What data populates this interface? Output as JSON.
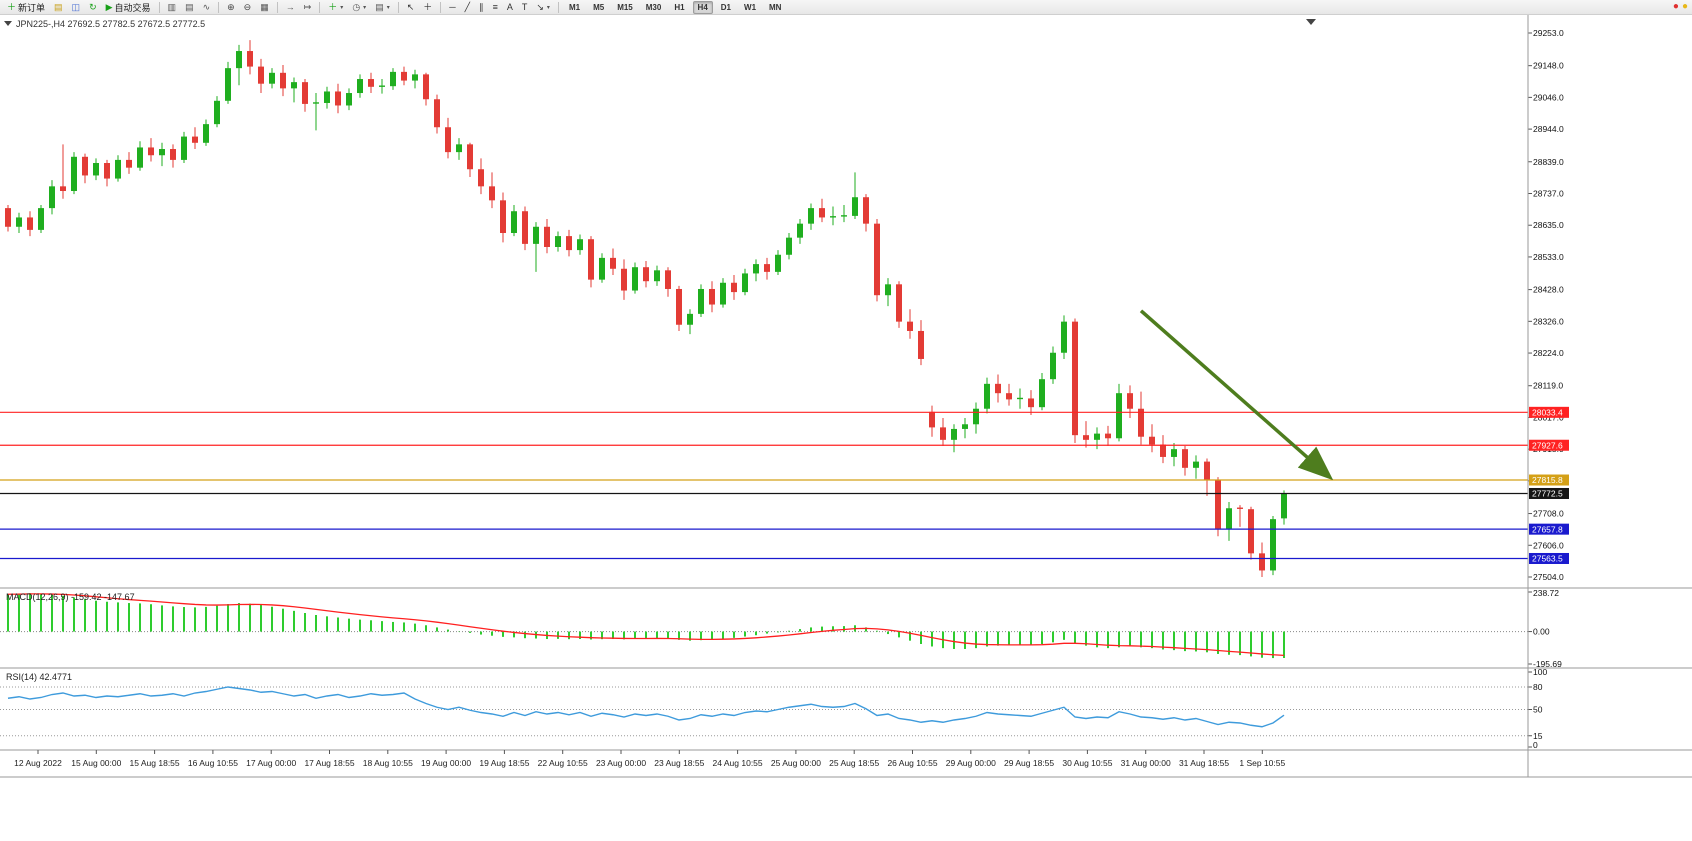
{
  "colors": {
    "bull": "#1fae1f",
    "bear": "#e33b35",
    "macd_hist": "#2ecc2e",
    "macd_signal": "#ff2020",
    "rsi_line": "#3e9bdc",
    "accent_red": "#ff2222",
    "accent_orange": "#d4a017",
    "accent_blue": "#1a1ace",
    "accent_black": "#151515",
    "arrow_green": "#4e7d1e"
  },
  "toolbar": {
    "dropdown_glyph": "▾",
    "groups": [
      {
        "items": [
          {
            "name": "new-order",
            "glyph": "＋",
            "color": "#18a018",
            "label": "新订单"
          },
          {
            "name": "new-chart",
            "glyph": "▤",
            "color": "#c8a018"
          },
          {
            "name": "profiles",
            "glyph": "◫",
            "color": "#4a6fd4"
          },
          {
            "name": "refresh",
            "glyph": "↻",
            "color": "#18a018"
          },
          {
            "name": "autotrading",
            "glyph": "▶",
            "color": "#18a018",
            "label": "自动交易"
          }
        ]
      },
      {
        "items": [
          {
            "name": "bar-chart",
            "glyph": "▥",
            "color": "#555555"
          },
          {
            "name": "candlestick-chart",
            "glyph": "▤",
            "color": "#555555"
          },
          {
            "name": "line-chart",
            "glyph": "∿",
            "color": "#555555"
          }
        ]
      },
      {
        "items": [
          {
            "name": "zoom-in",
            "glyph": "⊕",
            "color": "#444444"
          },
          {
            "name": "zoom-out",
            "glyph": "⊖",
            "color": "#444444"
          },
          {
            "name": "tile-windows",
            "glyph": "▦",
            "color": "#555555"
          }
        ]
      },
      {
        "items": [
          {
            "name": "auto-scroll",
            "glyph": "→",
            "color": "#555555"
          },
          {
            "name": "chart-shift",
            "glyph": "↦",
            "color": "#555555"
          }
        ]
      },
      {
        "items": [
          {
            "name": "indicators",
            "glyph": "＋",
            "color": "#18a018",
            "dropdown": true
          },
          {
            "name": "periods",
            "glyph": "◷",
            "color": "#555555",
            "dropdown": true
          },
          {
            "name": "templates",
            "glyph": "▤",
            "color": "#555555",
            "dropdown": true
          }
        ]
      },
      {
        "items": [
          {
            "name": "cursor",
            "glyph": "↖",
            "color": "#333333"
          },
          {
            "name": "crosshair",
            "glyph": "＋",
            "color": "#333333"
          }
        ]
      },
      {
        "items": [
          {
            "name": "horizontal-line",
            "glyph": "─",
            "color": "#333333"
          },
          {
            "name": "trendline",
            "glyph": "╱",
            "color": "#333333"
          },
          {
            "name": "equidistant-channel",
            "glyph": "∥",
            "color": "#333333"
          },
          {
            "name": "fibonacci",
            "glyph": "≡",
            "color": "#333333"
          },
          {
            "name": "text",
            "glyph": "A",
            "color": "#333333"
          },
          {
            "name": "text-label",
            "glyph": "T",
            "color": "#333333"
          },
          {
            "name": "arrows",
            "glyph": "↘",
            "color": "#333333",
            "dropdown": true
          }
        ]
      }
    ],
    "timeframes": {
      "options": [
        "M1",
        "M5",
        "M15",
        "M30",
        "H1",
        "H4",
        "D1",
        "W1",
        "MN"
      ],
      "active": "H4"
    },
    "right_icons": [
      {
        "name": "red-status",
        "glyph": "●",
        "color": "#e03030"
      },
      {
        "name": "yellow-status",
        "glyph": "●",
        "color": "#e8b818"
      }
    ]
  },
  "chart_data": {
    "type": "candlestick",
    "symbol": "JPN225-",
    "period": "H4",
    "header": {
      "symbol_period": "JPN225-,H4",
      "open": "27692.5",
      "high": "27782.5",
      "low": "27672.5",
      "close": "27772.5"
    },
    "price_axis": {
      "ticks": [
        29253.0,
        29148.0,
        29046.0,
        28944.0,
        28839.0,
        28737.0,
        28635.0,
        28533.0,
        28428.0,
        28326.0,
        28224.0,
        28119.0,
        28017.0,
        27915.0,
        27813.0,
        27708.0,
        27606.0,
        27504.0
      ]
    },
    "time_axis": {
      "labels": [
        "12 Aug 2022",
        "15 Aug 00:00",
        "15 Aug 18:55",
        "16 Aug 10:55",
        "17 Aug 00:00",
        "17 Aug 18:55",
        "18 Aug 10:55",
        "19 Aug 00:00",
        "19 Aug 18:55",
        "22 Aug 10:55",
        "23 Aug 00:00",
        "23 Aug 18:55",
        "24 Aug 10:55",
        "25 Aug 00:00",
        "25 Aug 18:55",
        "26 Aug 10:55",
        "29 Aug 00:00",
        "29 Aug 18:55",
        "30 Aug 10:55",
        "31 Aug 00:00",
        "31 Aug 18:55",
        "1 Sep 10:55"
      ]
    },
    "hlines": [
      {
        "price": 28033.4,
        "color": "#ff2222"
      },
      {
        "price": 27927.6,
        "color": "#ff2222"
      },
      {
        "price": 27815.8,
        "color": "#d4a017"
      },
      {
        "price": 27772.5,
        "color": "#151515"
      },
      {
        "price": 27657.8,
        "color": "#1a1ace"
      },
      {
        "price": 27563.5,
        "color": "#1a1ace"
      }
    ],
    "candles": [
      [
        28690,
        28700,
        28615,
        28630
      ],
      [
        28630,
        28675,
        28610,
        28660
      ],
      [
        28660,
        28680,
        28600,
        28620
      ],
      [
        28620,
        28700,
        28610,
        28690
      ],
      [
        28690,
        28780,
        28670,
        28760
      ],
      [
        28760,
        28895,
        28720,
        28745
      ],
      [
        28745,
        28870,
        28735,
        28855
      ],
      [
        28855,
        28865,
        28770,
        28795
      ],
      [
        28795,
        28850,
        28780,
        28835
      ],
      [
        28835,
        28845,
        28760,
        28785
      ],
      [
        28785,
        28860,
        28775,
        28845
      ],
      [
        28845,
        28870,
        28800,
        28820
      ],
      [
        28820,
        28905,
        28810,
        28885
      ],
      [
        28885,
        28915,
        28840,
        28860
      ],
      [
        28860,
        28900,
        28825,
        28880
      ],
      [
        28880,
        28895,
        28820,
        28845
      ],
      [
        28845,
        28935,
        28835,
        28920
      ],
      [
        28920,
        28950,
        28880,
        28900
      ],
      [
        28900,
        28975,
        28890,
        28960
      ],
      [
        28960,
        29050,
        28950,
        29035
      ],
      [
        29035,
        29160,
        29025,
        29140
      ],
      [
        29140,
        29215,
        29085,
        29195
      ],
      [
        29195,
        29230,
        29120,
        29145
      ],
      [
        29145,
        29170,
        29060,
        29090
      ],
      [
        29090,
        29140,
        29075,
        29125
      ],
      [
        29125,
        29150,
        29050,
        29075
      ],
      [
        29075,
        29110,
        29030,
        29095
      ],
      [
        29095,
        29105,
        29000,
        29025
      ],
      [
        29025,
        29060,
        28940,
        29028
      ],
      [
        29028,
        29080,
        29010,
        29065
      ],
      [
        29065,
        29090,
        28995,
        29020
      ],
      [
        29020,
        29075,
        29005,
        29060
      ],
      [
        29060,
        29120,
        29045,
        29105
      ],
      [
        29105,
        29125,
        29060,
        29080
      ],
      [
        29080,
        29105,
        29058,
        29082
      ],
      [
        29082,
        29140,
        29070,
        29128
      ],
      [
        29128,
        29145,
        29085,
        29100
      ],
      [
        29100,
        29135,
        29075,
        29120
      ],
      [
        29120,
        29125,
        29020,
        29040
      ],
      [
        29040,
        29055,
        28930,
        28950
      ],
      [
        28950,
        28980,
        28850,
        28870
      ],
      [
        28870,
        28915,
        28845,
        28895
      ],
      [
        28895,
        28900,
        28790,
        28815
      ],
      [
        28815,
        28850,
        28735,
        28760
      ],
      [
        28760,
        28805,
        28690,
        28715
      ],
      [
        28715,
        28740,
        28580,
        28610
      ],
      [
        28610,
        28700,
        28600,
        28680
      ],
      [
        28680,
        28695,
        28555,
        28575
      ],
      [
        28575,
        28645,
        28485,
        28630
      ],
      [
        28630,
        28655,
        28545,
        28565
      ],
      [
        28565,
        28615,
        28550,
        28600
      ],
      [
        28600,
        28620,
        28535,
        28555
      ],
      [
        28555,
        28605,
        28540,
        28590
      ],
      [
        28590,
        28600,
        28435,
        28460
      ],
      [
        28460,
        28545,
        28450,
        28530
      ],
      [
        28530,
        28560,
        28475,
        28495
      ],
      [
        28495,
        28525,
        28395,
        28425
      ],
      [
        28425,
        28515,
        28415,
        28500
      ],
      [
        28500,
        28520,
        28435,
        28455
      ],
      [
        28455,
        28505,
        28440,
        28490
      ],
      [
        28490,
        28500,
        28405,
        28430
      ],
      [
        28430,
        28440,
        28295,
        28315
      ],
      [
        28315,
        28365,
        28285,
        28350
      ],
      [
        28350,
        28445,
        28340,
        28430
      ],
      [
        28430,
        28455,
        28355,
        28380
      ],
      [
        28380,
        28465,
        28370,
        28450
      ],
      [
        28450,
        28475,
        28395,
        28420
      ],
      [
        28420,
        28495,
        28410,
        28480
      ],
      [
        28480,
        28525,
        28455,
        28510
      ],
      [
        28510,
        28530,
        28460,
        28485
      ],
      [
        28485,
        28555,
        28475,
        28540
      ],
      [
        28540,
        28610,
        28525,
        28595
      ],
      [
        28595,
        28655,
        28575,
        28640
      ],
      [
        28640,
        28705,
        28620,
        28690
      ],
      [
        28690,
        28720,
        28645,
        28660
      ],
      [
        28660,
        28695,
        28635,
        28662
      ],
      [
        28662,
        28700,
        28645,
        28665
      ],
      [
        28665,
        28805,
        28655,
        28725
      ],
      [
        28725,
        28735,
        28615,
        28640
      ],
      [
        28640,
        28655,
        28390,
        28410
      ],
      [
        28410,
        28465,
        28375,
        28445
      ],
      [
        28445,
        28455,
        28305,
        28325
      ],
      [
        28325,
        28365,
        28270,
        28295
      ],
      [
        28295,
        28330,
        28185,
        28205
      ],
      [
        28035,
        28055,
        27955,
        27985
      ],
      [
        27985,
        28015,
        27925,
        27945
      ],
      [
        27945,
        27995,
        27905,
        27980
      ],
      [
        27980,
        28015,
        27950,
        27995
      ],
      [
        27995,
        28065,
        27965,
        28045
      ],
      [
        28045,
        28145,
        28030,
        28125
      ],
      [
        28125,
        28155,
        28065,
        28095
      ],
      [
        28095,
        28125,
        28055,
        28075
      ],
      [
        28075,
        28110,
        28045,
        28078
      ],
      [
        28078,
        28105,
        28025,
        28050
      ],
      [
        28050,
        28160,
        28040,
        28140
      ],
      [
        28140,
        28245,
        28125,
        28225
      ],
      [
        28225,
        28345,
        28205,
        28325
      ],
      [
        28325,
        28335,
        27935,
        27960
      ],
      [
        27960,
        28005,
        27920,
        27945
      ],
      [
        27945,
        27985,
        27915,
        27965
      ],
      [
        27965,
        27990,
        27925,
        27950
      ],
      [
        27950,
        28125,
        27940,
        28095
      ],
      [
        28095,
        28120,
        28015,
        28045
      ],
      [
        28045,
        28100,
        27930,
        27955
      ],
      [
        27955,
        27995,
        27905,
        27930
      ],
      [
        27930,
        27960,
        27870,
        27890
      ],
      [
        27890,
        27935,
        27860,
        27915
      ],
      [
        27915,
        27925,
        27830,
        27855
      ],
      [
        27855,
        27895,
        27820,
        27875
      ],
      [
        27875,
        27885,
        27765,
        27815
      ],
      [
        27815,
        27825,
        27635,
        27660
      ],
      [
        27660,
        27745,
        27620,
        27725
      ],
      [
        27725,
        27735,
        27665,
        27722
      ],
      [
        27722,
        27730,
        27560,
        27580
      ],
      [
        27580,
        27615,
        27504,
        27525
      ],
      [
        27525,
        27700,
        27510,
        27690
      ],
      [
        27692.5,
        27782.5,
        27672.5,
        27772.5
      ]
    ],
    "indicators": {
      "macd": {
        "label": "MACD(12,26,9)",
        "value_main": "-159.42",
        "value_signal": "-147.67",
        "axis": [
          238.72,
          0.0,
          -195.69
        ],
        "values": [
          225,
          230,
          232,
          228,
          222,
          216,
          206,
          196,
          186,
          180,
          176,
          172,
          170,
          165,
          158,
          152,
          148,
          146,
          149,
          156,
          166,
          172,
          168,
          160,
          150,
          138,
          125,
          112,
          100,
          92,
          85,
          78,
          72,
          68,
          63,
          58,
          55,
          48,
          38,
          25,
          12,
          2,
          -8,
          -18,
          -25,
          -32,
          -35,
          -40,
          -42,
          -45,
          -44,
          -46,
          -45,
          -48,
          -46,
          -45,
          -47,
          -44,
          -42,
          -40,
          -42,
          -50,
          -55,
          -52,
          -48,
          -42,
          -38,
          -30,
          -22,
          -12,
          -5,
          5,
          15,
          25,
          30,
          32,
          33,
          38,
          25,
          5,
          -15,
          -35,
          -55,
          -75,
          -90,
          -100,
          -105,
          -105,
          -100,
          -90,
          -85,
          -82,
          -80,
          -80,
          -75,
          -65,
          -50,
          -70,
          -85,
          -95,
          -100,
          -95,
          -90,
          -95,
          -100,
          -108,
          -112,
          -118,
          -120,
          -125,
          -135,
          -140,
          -142,
          -150,
          -158,
          -160,
          -159.42
        ]
      },
      "rsi": {
        "label": "RSI(14)",
        "value": "42.4771",
        "axis": [
          100,
          80,
          50,
          15,
          0
        ],
        "levels": [
          80,
          50,
          15
        ],
        "values": [
          65,
          67,
          64,
          66,
          70,
          72,
          68,
          69,
          66,
          68,
          67,
          69,
          71,
          68,
          69,
          71,
          68,
          72,
          74,
          77,
          80,
          78,
          76,
          73,
          74,
          71,
          68,
          70,
          65,
          68,
          70,
          66,
          68,
          71,
          69,
          70,
          72,
          64,
          58,
          53,
          50,
          53,
          49,
          46,
          44,
          41,
          46,
          42,
          47,
          44,
          46,
          43,
          46,
          41,
          45,
          43,
          40,
          44,
          42,
          44,
          41,
          36,
          38,
          43,
          41,
          44,
          42,
          46,
          48,
          47,
          50,
          53,
          55,
          57,
          54,
          53,
          54,
          58,
          51,
          42,
          44,
          38,
          36,
          33,
          35,
          33,
          36,
          38,
          41,
          46,
          44,
          43,
          42,
          41,
          45,
          49,
          53,
          40,
          38,
          40,
          39,
          47,
          44,
          40,
          39,
          37,
          39,
          36,
          38,
          34,
          30,
          33,
          32,
          29,
          27,
          32,
          42.48
        ]
      }
    },
    "annotations": [
      {
        "type": "arrow",
        "color": "#4e7d1e",
        "from": {
          "index": 103,
          "price": 28360
        },
        "to": {
          "index": 120,
          "price": 27830
        }
      }
    ]
  }
}
